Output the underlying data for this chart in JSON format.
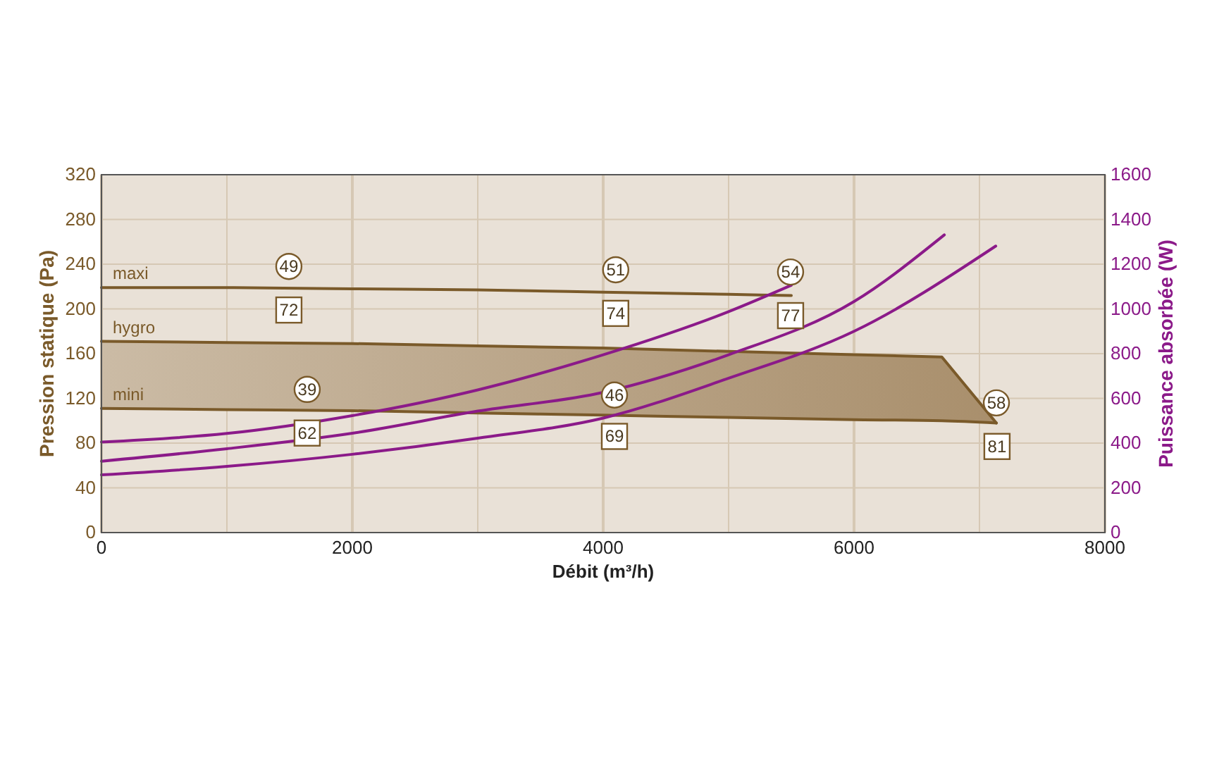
{
  "chart_data": {
    "type": "line",
    "xlabel": "Débit (m³/h)",
    "ylabel": "Pression statique (Pa)",
    "y2label": "Puissance absorbée (W)",
    "xlim": [
      0,
      8000
    ],
    "xticks": [
      0,
      {
        "value": 1000,
        "label": null
      },
      2000,
      {
        "value": 3000,
        "label": null
      },
      4000,
      {
        "value": 5000,
        "label": null
      },
      6000,
      {
        "value": 7000,
        "label": null
      },
      8000
    ],
    "ylim": [
      0,
      320
    ],
    "yticks": [
      0,
      40,
      80,
      120,
      160,
      200,
      240,
      280,
      320
    ],
    "y2lim": [
      0,
      1600
    ],
    "y2ticks": [
      0,
      200,
      400,
      600,
      800,
      1000,
      1200,
      1400,
      1600
    ],
    "grid": true,
    "marker": "none",
    "line_style": "solid",
    "series": [
      {
        "name": "maxi",
        "color": "#7a5a2a",
        "x": [
          0,
          1000,
          2000,
          3000,
          4000,
          5000,
          5500
        ],
        "values": [
          219,
          219,
          218,
          217,
          215,
          213,
          212
        ]
      },
      {
        "name": "hygro",
        "type": "area",
        "color": "#7a5a2a",
        "x": [
          0,
          1000,
          2000,
          3000,
          4000,
          5000,
          6000,
          6700,
          7135
        ],
        "values": [
          171,
          170,
          169,
          167,
          165,
          162,
          159,
          157,
          98
        ]
      },
      {
        "name": "mini",
        "color": "#7a5a2a",
        "x": [
          0,
          1000,
          2000,
          3000,
          4000,
          5000,
          6000,
          6700,
          7135
        ],
        "values": [
          111,
          110,
          109,
          107,
          105,
          103,
          101,
          100,
          98
        ]
      },
      {
        "color": "#8b1a89",
        "axis": "y2",
        "x": [
          0,
          1000,
          2000,
          3000,
          4000,
          5000,
          5500
        ],
        "values": [
          405,
          443,
          523,
          638,
          795,
          988,
          1106
        ]
      },
      {
        "color": "#8b1a89",
        "axis": "y2",
        "x": [
          0,
          1000,
          2000,
          3000,
          4000,
          5000,
          6000,
          6720
        ],
        "values": [
          319,
          375,
          444,
          543,
          627,
          795,
          1033,
          1331
        ]
      },
      {
        "color": "#8b1a89",
        "axis": "y2",
        "x": [
          0,
          1000,
          2000,
          3000,
          4000,
          5000,
          6000,
          7130
        ],
        "values": [
          258,
          296,
          350,
          422,
          512,
          690,
          900,
          1281
        ]
      }
    ],
    "annotations": [
      {
        "text": "49",
        "x": 1494,
        "y": 238
      },
      {
        "text": "72",
        "x": 1494,
        "y": 199
      },
      {
        "text": "51",
        "x": 4100,
        "y": 235
      },
      {
        "text": "74",
        "x": 4100,
        "y": 196
      },
      {
        "text": "54",
        "x": 5494,
        "y": 233
      },
      {
        "text": "77",
        "x": 5494,
        "y": 194
      },
      {
        "text": "39",
        "x": 1640,
        "y": 128
      },
      {
        "text": "62",
        "x": 1640,
        "y": 89
      },
      {
        "text": "46",
        "x": 4090,
        "y": 123
      },
      {
        "text": "69",
        "x": 4090,
        "y": 86
      },
      {
        "text": "58",
        "x": 7135,
        "y": 116
      },
      {
        "text": "81",
        "x": 7140,
        "y": 77
      }
    ]
  }
}
